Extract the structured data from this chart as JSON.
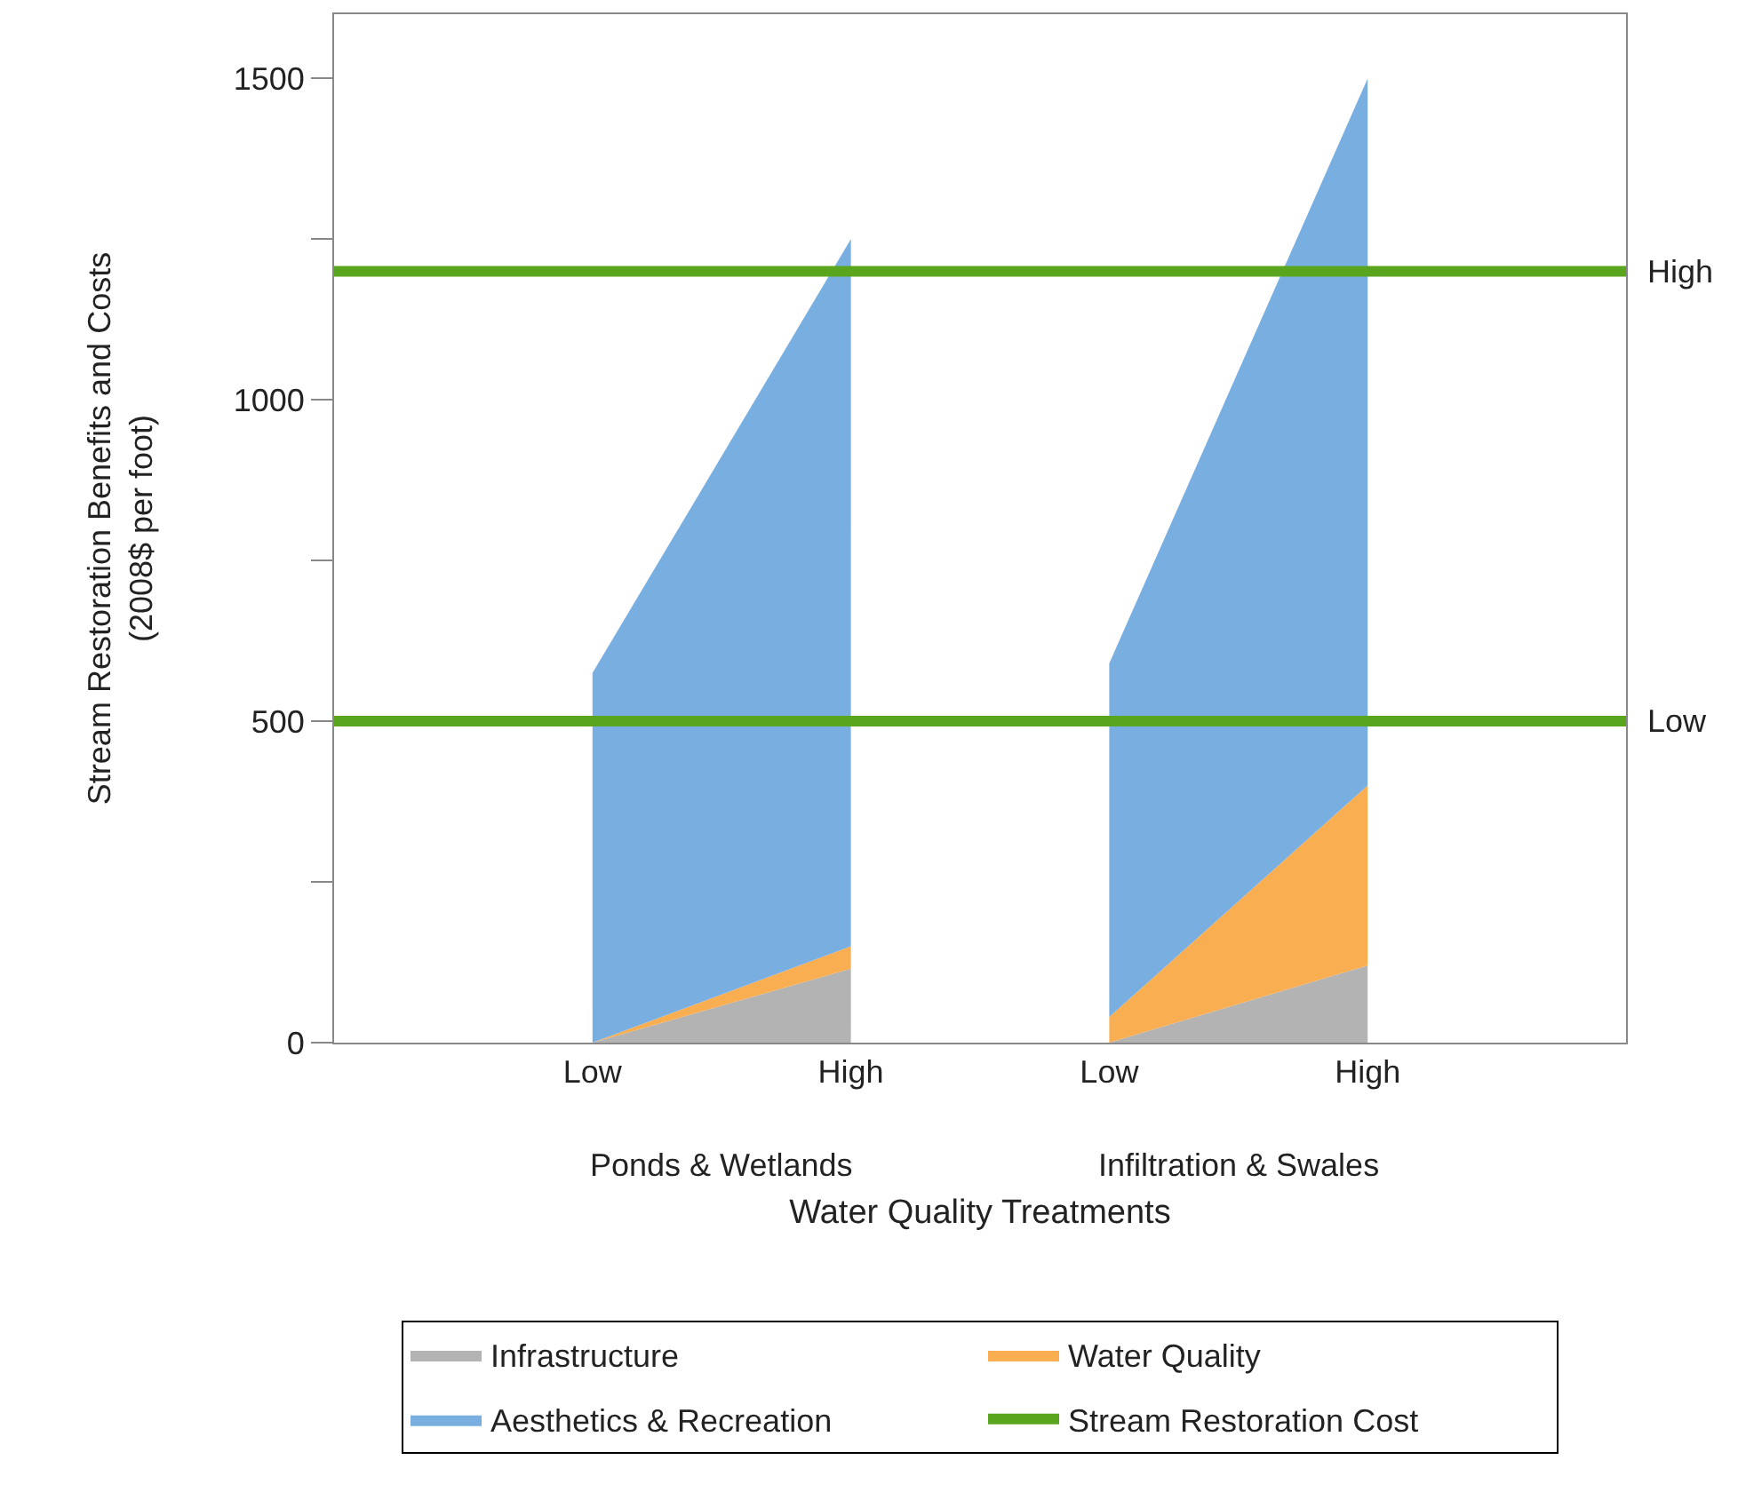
{
  "chart_data": {
    "type": "area",
    "stacked": true,
    "xlabel": "Water Quality Treatments",
    "ylabel": "Stream Restoration Benefits and Costs\n(2008$ per foot)",
    "categories": [
      null,
      "Low",
      "High",
      "Low",
      "High",
      null
    ],
    "ylim": [
      0,
      1600
    ],
    "yticks": [
      0,
      {
        "value": 250,
        "label": null
      },
      500,
      {
        "value": 750,
        "label": null
      },
      1000,
      {
        "value": 1250,
        "label": null
      },
      1500
    ],
    "series": [
      {
        "name": "Infrastructure",
        "color": "#b3b3b3",
        "values": [
          null,
          0,
          115,
          0,
          120,
          null
        ]
      },
      {
        "name": "Water Quality",
        "color": "#f9ae52",
        "values": [
          null,
          0,
          35,
          40,
          280,
          null
        ]
      },
      {
        "name": "Aesthetics & Recreation",
        "color": "#79aee0",
        "values": [
          null,
          575,
          1100,
          550,
          1100,
          null
        ]
      },
      {
        "name": "Stream Restoration Cost",
        "type": "line",
        "color": "#5aa51e",
        "values": [
          null,
          null,
          null,
          null,
          null,
          null
        ]
      }
    ],
    "ref_lines": [
      {
        "axis": "y",
        "value": 1200,
        "label": "High",
        "color": "#5aa51e"
      },
      {
        "axis": "y",
        "value": 500,
        "label": "Low",
        "color": "#5aa51e"
      }
    ],
    "annotations": [
      "Ponds & Wetlands",
      "Infiltration & Swales"
    ],
    "legend": "bottom"
  }
}
